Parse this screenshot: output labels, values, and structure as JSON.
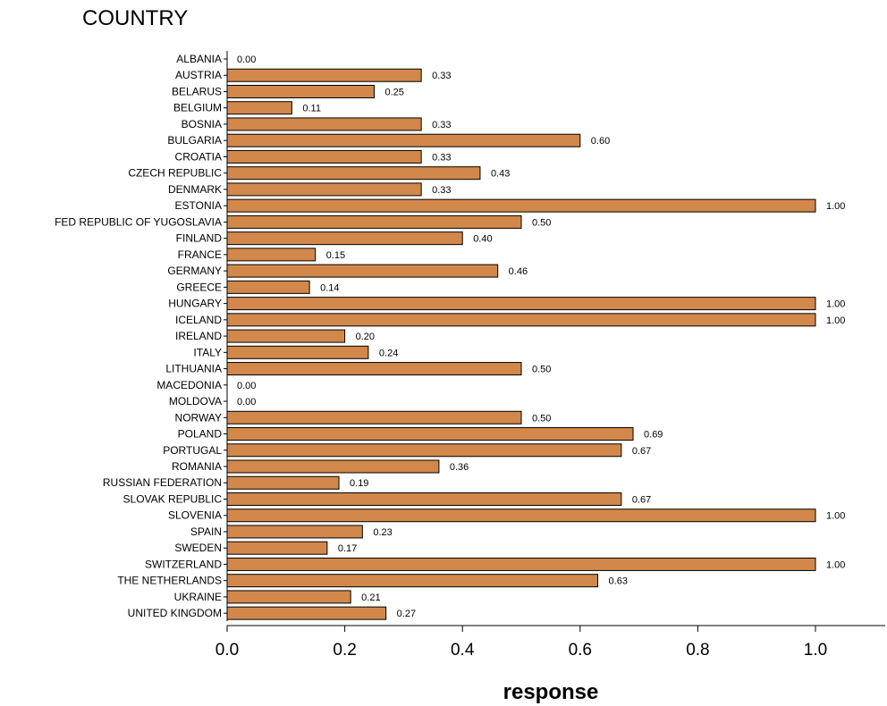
{
  "chart_data": {
    "type": "bar",
    "orientation": "horizontal",
    "title": "COUNTRY",
    "xlabel": "response",
    "ylabel": "",
    "xlim": [
      0,
      1.12
    ],
    "x_ticks": [
      "0.0",
      "0.2",
      "0.4",
      "0.6",
      "0.8",
      "1.0"
    ],
    "bar_color": "#D2884A",
    "grid": false,
    "categories": [
      "ALBANIA",
      "AUSTRIA",
      "BELARUS",
      "BELGIUM",
      "BOSNIA",
      "BULGARIA",
      "CROATIA",
      "CZECH REPUBLIC",
      "DENMARK",
      "ESTONIA",
      "FED REPUBLIC OF YUGOSLAVIA",
      "FINLAND",
      "FRANCE",
      "GERMANY",
      "GREECE",
      "HUNGARY",
      "ICELAND",
      "IRELAND",
      "ITALY",
      "LITHUANIA",
      "MACEDONIA",
      "MOLDOVA",
      "NORWAY",
      "POLAND",
      "PORTUGAL",
      "ROMANIA",
      "RUSSIAN FEDERATION",
      "SLOVAK REPUBLIC",
      "SLOVENIA",
      "SPAIN",
      "SWEDEN",
      "SWITZERLAND",
      "THE NETHERLANDS",
      "UKRAINE",
      "UNITED KINGDOM"
    ],
    "values": [
      0.0,
      0.33,
      0.25,
      0.11,
      0.33,
      0.6,
      0.33,
      0.43,
      0.33,
      1.0,
      0.5,
      0.4,
      0.15,
      0.46,
      0.14,
      1.0,
      1.0,
      0.2,
      0.24,
      0.5,
      0.0,
      0.0,
      0.5,
      0.69,
      0.67,
      0.36,
      0.19,
      0.67,
      1.0,
      0.23,
      0.17,
      1.0,
      0.63,
      0.21,
      0.27
    ],
    "value_labels": [
      "0.00",
      "0.33",
      "0.25",
      "0.11",
      "0.33",
      "0.60",
      "0.33",
      "0.43",
      "0.33",
      "1.00",
      "0.50",
      "0.40",
      "0.15",
      "0.46",
      "0.14",
      "1.00",
      "1.00",
      "0.20",
      "0.24",
      "0.50",
      "0.00",
      "0.00",
      "0.50",
      "0.69",
      "0.67",
      "0.36",
      "0.19",
      "0.67",
      "1.00",
      "0.23",
      "0.17",
      "1.00",
      "0.63",
      "0.21",
      "0.27"
    ]
  }
}
